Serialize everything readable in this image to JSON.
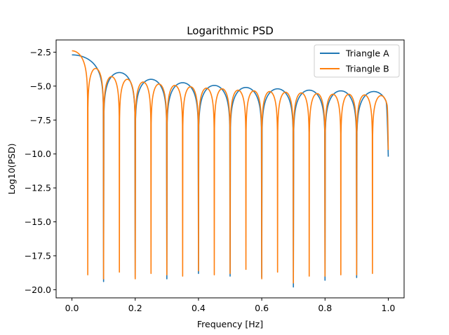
{
  "chart_data": {
    "type": "line",
    "title": "Logarithmic PSD",
    "xlabel": "Frequency [Hz]",
    "ylabel": "Log10(PSD)",
    "xlim": [
      -0.05,
      1.05
    ],
    "ylim": [
      -20.6,
      -1.6
    ],
    "xticks": [
      {
        "value": 0.0,
        "label": "0.0"
      },
      {
        "value": 0.2,
        "label": "0.2"
      },
      {
        "value": 0.4,
        "label": "0.4"
      },
      {
        "value": 0.6,
        "label": "0.6"
      },
      {
        "value": 0.8,
        "label": "0.8"
      },
      {
        "value": 1.0,
        "label": "1.0"
      }
    ],
    "yticks": [
      {
        "value": -2.5,
        "label": "−2.5"
      },
      {
        "value": -5.0,
        "label": "−5.0"
      },
      {
        "value": -7.5,
        "label": "−7.5"
      },
      {
        "value": -10.0,
        "label": "−10.0"
      },
      {
        "value": -12.5,
        "label": "−12.5"
      },
      {
        "value": -15.0,
        "label": "−15.0"
      },
      {
        "value": -17.5,
        "label": "−17.5"
      },
      {
        "value": -20.0,
        "label": "−20.0"
      }
    ],
    "grid": false,
    "legend_position": "top-right",
    "series": [
      {
        "name": "Triangle A",
        "color": "#1f77b4",
        "nulls": [
          {
            "x": 0.1,
            "y": -19.4
          },
          {
            "x": 0.2,
            "y": -19.1
          },
          {
            "x": 0.3,
            "y": -19.2
          },
          {
            "x": 0.4,
            "y": -18.8
          },
          {
            "x": 0.5,
            "y": -19.0
          },
          {
            "x": 0.6,
            "y": -19.1
          },
          {
            "x": 0.7,
            "y": -19.8
          },
          {
            "x": 0.8,
            "y": -19.3
          },
          {
            "x": 0.9,
            "y": -19.1
          }
        ],
        "peaks": [
          {
            "x": 0.0,
            "y": -2.7
          },
          {
            "x": 0.15,
            "y": -4.0
          },
          {
            "x": 0.25,
            "y": -4.5
          },
          {
            "x": 0.35,
            "y": -4.75
          },
          {
            "x": 0.45,
            "y": -4.95
          },
          {
            "x": 0.55,
            "y": -5.1
          },
          {
            "x": 0.65,
            "y": -5.2
          },
          {
            "x": 0.75,
            "y": -5.3
          },
          {
            "x": 0.85,
            "y": -5.35
          },
          {
            "x": 0.95,
            "y": -5.4
          }
        ],
        "end": {
          "x": 1.0,
          "y": -10.2
        }
      },
      {
        "name": "Triangle B",
        "color": "#ff7f0e",
        "nulls": [
          {
            "x": 0.05,
            "y": -18.9
          },
          {
            "x": 0.1,
            "y": -19.2
          },
          {
            "x": 0.15,
            "y": -18.7
          },
          {
            "x": 0.2,
            "y": -19.2
          },
          {
            "x": 0.25,
            "y": -18.8
          },
          {
            "x": 0.3,
            "y": -18.9
          },
          {
            "x": 0.35,
            "y": -19.0
          },
          {
            "x": 0.4,
            "y": -18.6
          },
          {
            "x": 0.45,
            "y": -18.9
          },
          {
            "x": 0.5,
            "y": -18.8
          },
          {
            "x": 0.55,
            "y": -18.5
          },
          {
            "x": 0.6,
            "y": -19.2
          },
          {
            "x": 0.65,
            "y": -18.7
          },
          {
            "x": 0.7,
            "y": -19.5
          },
          {
            "x": 0.75,
            "y": -19.0
          },
          {
            "x": 0.8,
            "y": -19.0
          },
          {
            "x": 0.85,
            "y": -18.9
          },
          {
            "x": 0.9,
            "y": -18.9
          },
          {
            "x": 0.95,
            "y": -18.8
          }
        ],
        "peaks": [
          {
            "x": 0.0,
            "y": -2.4
          },
          {
            "x": 0.075,
            "y": -3.7
          },
          {
            "x": 0.125,
            "y": -4.3
          },
          {
            "x": 0.175,
            "y": -4.5
          },
          {
            "x": 0.225,
            "y": -4.7
          },
          {
            "x": 0.275,
            "y": -4.85
          },
          {
            "x": 0.325,
            "y": -4.95
          },
          {
            "x": 0.375,
            "y": -5.05
          },
          {
            "x": 0.425,
            "y": -5.15
          },
          {
            "x": 0.475,
            "y": -5.2
          },
          {
            "x": 0.525,
            "y": -5.3
          },
          {
            "x": 0.575,
            "y": -5.35
          },
          {
            "x": 0.625,
            "y": -5.4
          },
          {
            "x": 0.675,
            "y": -5.45
          },
          {
            "x": 0.725,
            "y": -5.5
          },
          {
            "x": 0.775,
            "y": -5.55
          },
          {
            "x": 0.825,
            "y": -5.6
          },
          {
            "x": 0.875,
            "y": -5.6
          },
          {
            "x": 0.925,
            "y": -5.65
          },
          {
            "x": 0.975,
            "y": -5.7
          }
        ],
        "end": {
          "x": 1.0,
          "y": -9.7
        }
      }
    ]
  }
}
